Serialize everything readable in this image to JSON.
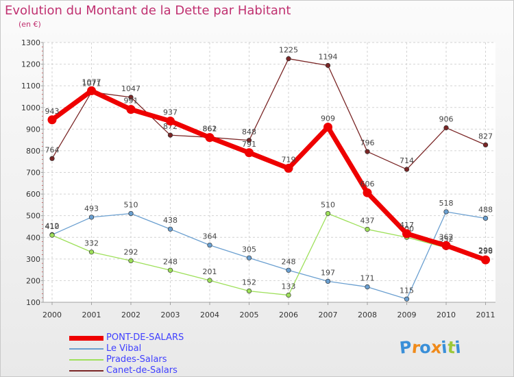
{
  "chart_data": {
    "type": "line",
    "title": "Evolution du Montant de la Dette par Habitant",
    "subtitle": "(en €)",
    "xlabel": "",
    "ylabel": "",
    "x": [
      "2000",
      "2001",
      "2002",
      "2003",
      "2004",
      "2005",
      "2006",
      "2007",
      "2008",
      "2009",
      "2010",
      "2011"
    ],
    "ylim": [
      100,
      1300
    ],
    "yticks": [
      100,
      200,
      300,
      400,
      500,
      600,
      700,
      800,
      900,
      1000,
      1100,
      1200,
      1300
    ],
    "grid": true,
    "legend": "bottom-left",
    "series": [
      {
        "name": "PONT-DE-SALARS",
        "color": "#ee0000",
        "values": [
          943,
          1077,
          991,
          937,
          861,
          791,
          719,
          909,
          606,
          417,
          362,
          296
        ]
      },
      {
        "name": "Le Vibal",
        "color": "#6a9fd0",
        "values": [
          412,
          493,
          510,
          438,
          364,
          305,
          248,
          197,
          171,
          115,
          518,
          488
        ]
      },
      {
        "name": "Prades-Salars",
        "color": "#9ee05a",
        "values": [
          410,
          332,
          292,
          248,
          201,
          152,
          133,
          510,
          437,
          400,
          352,
          299
        ]
      },
      {
        "name": "Canet-de-Salars",
        "color": "#7a2626",
        "values": [
          764,
          1071,
          1047,
          872,
          862,
          848,
          1225,
          1194,
          796,
          714,
          906,
          827
        ]
      }
    ]
  },
  "logo": {
    "text": "Proxiti",
    "letters": [
      "P",
      "r",
      "o",
      "x",
      "i",
      "t",
      "i"
    ],
    "colors": [
      "#3a8fd8",
      "#f08a1a",
      "#3a8fd8",
      "#f08a1a",
      "#3a8fd8",
      "#9cc83a",
      "#3a8fd8"
    ]
  }
}
